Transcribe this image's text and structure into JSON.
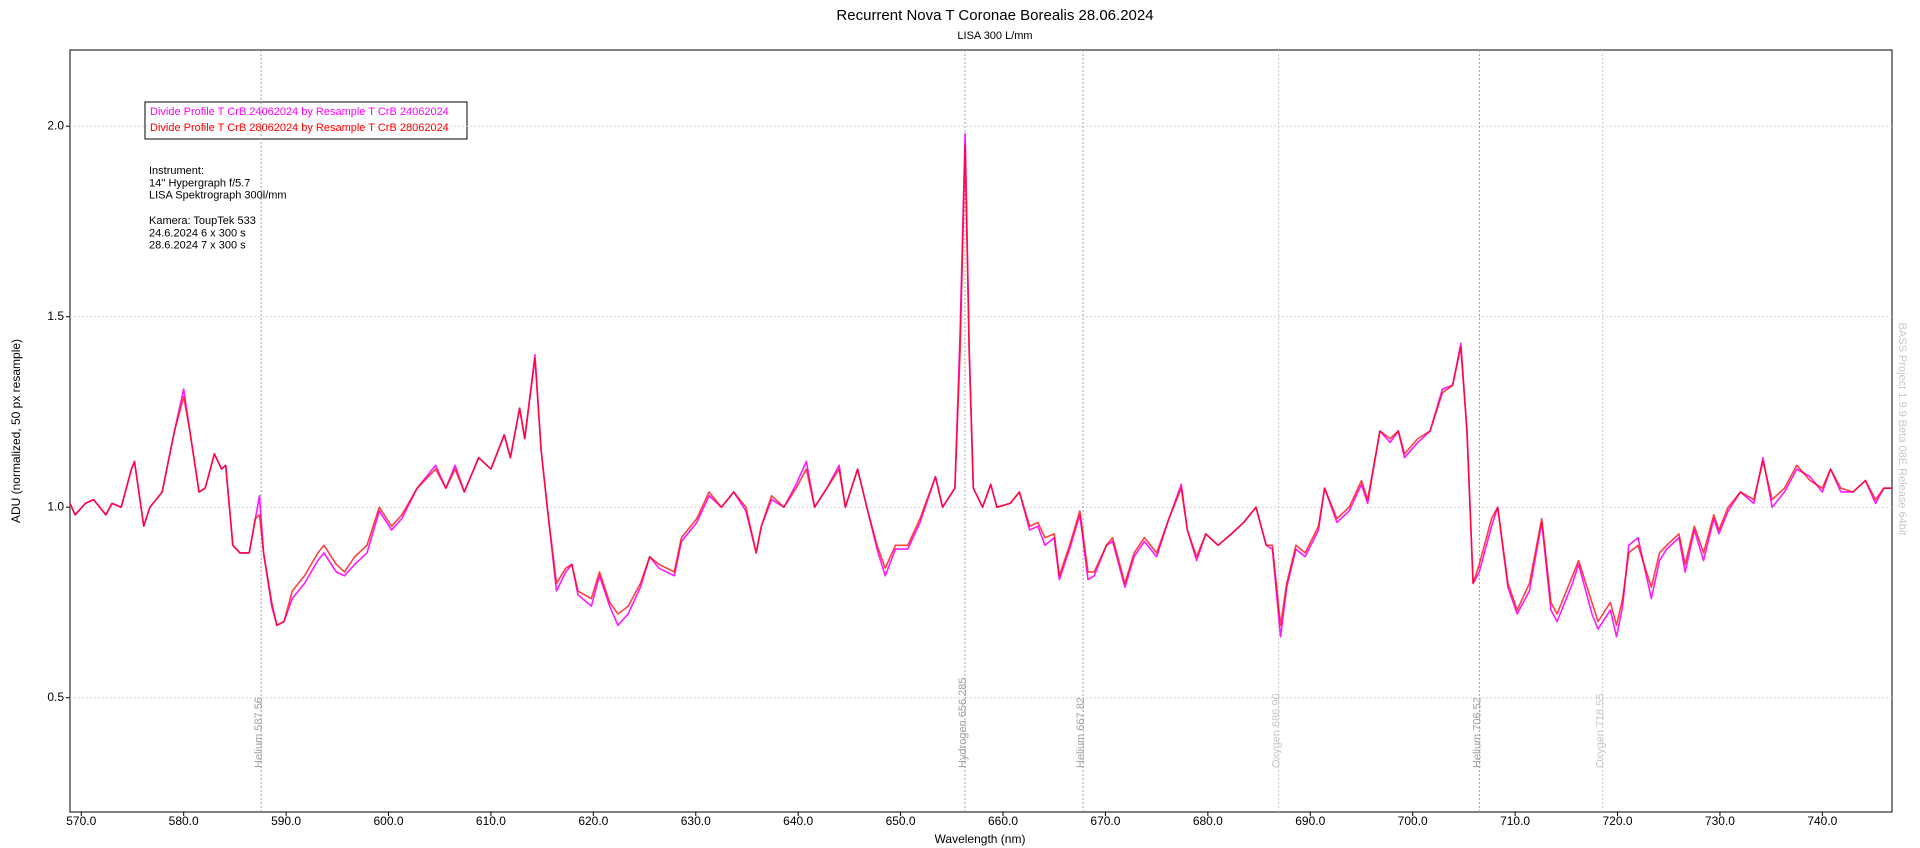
{
  "chart_data": {
    "type": "line",
    "title": "Recurrent Nova T Coronae Borealis  28.06.2024",
    "subtitle": "LISA 300 L/mm",
    "x_label": "Wavelength (nm)",
    "y_label": "ADU (normalized, 50 px resample)",
    "watermark": "BASS Project 1.9.9 Beta 08E Release 64bit",
    "xlim": [
      568.9,
      746.8
    ],
    "ylim": [
      0.2,
      2.2
    ],
    "xticks": [
      {
        "value": 570,
        "label": "570.0"
      },
      {
        "value": 580,
        "label": "580.0"
      },
      {
        "value": 590,
        "label": "590.0"
      },
      {
        "value": 600,
        "label": "600.0"
      },
      {
        "value": 610,
        "label": "610.0"
      },
      {
        "value": 620,
        "label": "620.0"
      },
      {
        "value": 630,
        "label": "630.0"
      },
      {
        "value": 640,
        "label": "640.0"
      },
      {
        "value": 650,
        "label": "650.0"
      },
      {
        "value": 660,
        "label": "660.0"
      },
      {
        "value": 670,
        "label": "670.0"
      },
      {
        "value": 680,
        "label": "680.0"
      },
      {
        "value": 690,
        "label": "690.0"
      },
      {
        "value": 700,
        "label": "700.0"
      },
      {
        "value": 710,
        "label": "710.0"
      },
      {
        "value": 720,
        "label": "720.0"
      },
      {
        "value": 730,
        "label": "730.0"
      },
      {
        "value": 740,
        "label": "740.0"
      }
    ],
    "yticks": [
      0.5,
      {
        "value": 1,
        "label": "1.0"
      },
      1.5,
      {
        "value": 2,
        "label": "2.0"
      }
    ],
    "grid": true,
    "markers": [
      {
        "label": "Helium 587.56",
        "x": 587.56,
        "color": "#a0a0a0"
      },
      {
        "label": "Hydrogen 656.285",
        "x": 656.285,
        "color": "#a0a0a0"
      },
      {
        "label": "Helium 667.82",
        "x": 667.82,
        "color": "#a0a0a0"
      },
      {
        "label": "Oxygen 686.90",
        "x": 686.9,
        "color": "#c8c8c8"
      },
      {
        "label": "Helium 706.52",
        "x": 706.52,
        "color": "#a0a0a0"
      },
      {
        "label": "Oxygen 718.55",
        "x": 718.55,
        "color": "#c8c8c8"
      }
    ],
    "notes": [
      "Instrument:",
      "14'' Hypergraph f/5.7",
      "LISA Spektrograph 300l/mm"
    ],
    "notes2": [
      "Kamera: ToupTek 533",
      "24.6.2024  6 x 300 s",
      "28.6.2024  7  x 300 s"
    ],
    "x": [
      568.9,
      569.4,
      570.4,
      571.2,
      572.4,
      573.0,
      573.9,
      574.9,
      575.2,
      576.1,
      576.7,
      577.9,
      579.1,
      580.0,
      580.6,
      581.5,
      582.1,
      583.0,
      583.7,
      584.1,
      584.8,
      585.5,
      586.4,
      587.0,
      587.4,
      587.8,
      588.6,
      589.1,
      589.8,
      590.6,
      591.8,
      593.1,
      593.7,
      594.9,
      595.7,
      596.7,
      597.9,
      599.1,
      600.3,
      601.3,
      602.8,
      604.6,
      605.6,
      606.5,
      607.4,
      608.8,
      610.0,
      611.3,
      611.9,
      612.8,
      613.3,
      614.3,
      614.9,
      615.5,
      616.4,
      617.3,
      617.9,
      618.5,
      619.8,
      620.6,
      621.6,
      622.4,
      623.4,
      624.6,
      625.5,
      626.4,
      627.9,
      628.6,
      630.1,
      631.3,
      632.5,
      633.7,
      634.9,
      635.9,
      636.4,
      637.4,
      638.6,
      639.8,
      640.8,
      641.6,
      642.8,
      644.0,
      644.6,
      645.8,
      646.7,
      647.7,
      648.5,
      649.5,
      650.7,
      651.9,
      653.4,
      654.1,
      655.3,
      655.8,
      656.3,
      656.7,
      657.1,
      658.0,
      658.8,
      659.4,
      660.7,
      661.6,
      662.6,
      663.4,
      664.1,
      665.0,
      665.5,
      666.5,
      667.5,
      668.3,
      668.9,
      670.1,
      670.7,
      671.9,
      672.8,
      673.8,
      675.0,
      676.2,
      677.4,
      678.0,
      678.9,
      679.8,
      681.0,
      682.3,
      683.5,
      684.7,
      685.7,
      686.3,
      687.1,
      687.7,
      688.6,
      689.5,
      690.8,
      691.4,
      692.6,
      693.8,
      695.0,
      695.6,
      696.8,
      697.8,
      698.6,
      699.2,
      700.5,
      701.7,
      702.9,
      703.9,
      704.7,
      705.3,
      705.9,
      706.5,
      707.7,
      708.3,
      709.3,
      710.2,
      711.4,
      712.6,
      713.5,
      714.1,
      715.6,
      716.2,
      717.5,
      718.1,
      719.3,
      719.9,
      720.5,
      721.1,
      722.0,
      723.3,
      724.1,
      724.8,
      726.0,
      726.6,
      727.5,
      728.4,
      729.4,
      729.9,
      730.8,
      732.0,
      733.3,
      734.2,
      735.1,
      736.3,
      737.5,
      738.8,
      740.0,
      740.8,
      741.8,
      743.0,
      744.2,
      745.2,
      746.0,
      746.8
    ],
    "series": [
      {
        "name": "Divide Profile T CrB 24062024  by Resample T CrB 24062024",
        "color": "#ff00ff",
        "values": [
          1.01,
          0.98,
          1.01,
          1.02,
          0.98,
          1.01,
          1.0,
          1.1,
          1.12,
          0.95,
          1.0,
          1.04,
          1.2,
          1.31,
          1.2,
          1.04,
          1.05,
          1.14,
          1.1,
          1.11,
          0.9,
          0.88,
          0.88,
          0.97,
          1.03,
          0.88,
          0.74,
          0.69,
          0.7,
          0.76,
          0.8,
          0.86,
          0.88,
          0.83,
          0.82,
          0.85,
          0.88,
          0.99,
          0.94,
          0.97,
          1.05,
          1.11,
          1.05,
          1.11,
          1.04,
          1.13,
          1.1,
          1.19,
          1.13,
          1.26,
          1.18,
          1.4,
          1.15,
          1.0,
          0.78,
          0.83,
          0.85,
          0.77,
          0.74,
          0.82,
          0.74,
          0.69,
          0.72,
          0.79,
          0.87,
          0.84,
          0.82,
          0.91,
          0.96,
          1.03,
          1.0,
          1.04,
          0.99,
          0.88,
          0.95,
          1.02,
          1.0,
          1.06,
          1.12,
          1.0,
          1.05,
          1.11,
          1.0,
          1.1,
          1.0,
          0.89,
          0.82,
          0.89,
          0.89,
          0.96,
          1.08,
          1.0,
          1.05,
          1.45,
          1.98,
          1.42,
          1.05,
          1.0,
          1.06,
          1.0,
          1.01,
          1.04,
          0.94,
          0.95,
          0.9,
          0.92,
          0.81,
          0.89,
          0.98,
          0.81,
          0.82,
          0.9,
          0.91,
          0.79,
          0.87,
          0.91,
          0.87,
          0.97,
          1.06,
          0.94,
          0.86,
          0.93,
          0.9,
          0.93,
          0.96,
          1.0,
          0.9,
          0.89,
          0.66,
          0.79,
          0.89,
          0.87,
          0.94,
          1.05,
          0.96,
          0.99,
          1.06,
          1.01,
          1.2,
          1.17,
          1.2,
          1.13,
          1.17,
          1.2,
          1.31,
          1.32,
          1.43,
          1.2,
          0.8,
          0.83,
          0.95,
          1.0,
          0.79,
          0.72,
          0.78,
          0.96,
          0.73,
          0.7,
          0.8,
          0.85,
          0.72,
          0.68,
          0.73,
          0.66,
          0.74,
          0.9,
          0.92,
          0.76,
          0.86,
          0.89,
          0.92,
          0.83,
          0.94,
          0.86,
          0.97,
          0.93,
          0.99,
          1.04,
          1.01,
          1.13,
          1.0,
          1.04,
          1.1,
          1.08,
          1.04,
          1.1,
          1.04,
          1.04,
          1.07,
          1.01,
          1.05,
          1.05
        ]
      },
      {
        "name": "Divide Profile T CrB 28062024  by Resample T CrB 28062024",
        "color": "#ff0000",
        "values": [
          1.01,
          0.98,
          1.01,
          1.02,
          0.98,
          1.01,
          1.0,
          1.1,
          1.12,
          0.95,
          1.0,
          1.04,
          1.2,
          1.29,
          1.2,
          1.04,
          1.05,
          1.14,
          1.1,
          1.11,
          0.9,
          0.88,
          0.88,
          0.97,
          0.98,
          0.88,
          0.75,
          0.69,
          0.7,
          0.78,
          0.82,
          0.88,
          0.9,
          0.85,
          0.83,
          0.87,
          0.9,
          1.0,
          0.95,
          0.98,
          1.05,
          1.1,
          1.05,
          1.1,
          1.04,
          1.13,
          1.1,
          1.19,
          1.13,
          1.26,
          1.18,
          1.39,
          1.15,
          1.0,
          0.8,
          0.84,
          0.85,
          0.78,
          0.76,
          0.83,
          0.75,
          0.72,
          0.74,
          0.8,
          0.87,
          0.85,
          0.83,
          0.92,
          0.97,
          1.04,
          1.0,
          1.04,
          1.0,
          0.88,
          0.95,
          1.03,
          1.0,
          1.05,
          1.1,
          1.0,
          1.05,
          1.1,
          1.0,
          1.1,
          1.0,
          0.9,
          0.84,
          0.9,
          0.9,
          0.97,
          1.08,
          1.0,
          1.05,
          1.4,
          1.95,
          1.4,
          1.05,
          1.0,
          1.06,
          1.0,
          1.01,
          1.04,
          0.95,
          0.96,
          0.92,
          0.93,
          0.82,
          0.9,
          0.99,
          0.83,
          0.83,
          0.9,
          0.92,
          0.8,
          0.88,
          0.92,
          0.88,
          0.97,
          1.05,
          0.94,
          0.87,
          0.93,
          0.9,
          0.93,
          0.96,
          1.0,
          0.9,
          0.9,
          0.69,
          0.8,
          0.9,
          0.88,
          0.95,
          1.05,
          0.97,
          1.0,
          1.07,
          1.02,
          1.2,
          1.18,
          1.2,
          1.14,
          1.18,
          1.2,
          1.3,
          1.32,
          1.42,
          1.2,
          0.8,
          0.85,
          0.97,
          1.0,
          0.8,
          0.73,
          0.8,
          0.97,
          0.75,
          0.72,
          0.82,
          0.86,
          0.75,
          0.7,
          0.75,
          0.69,
          0.76,
          0.88,
          0.9,
          0.79,
          0.88,
          0.9,
          0.93,
          0.85,
          0.95,
          0.88,
          0.98,
          0.94,
          1.0,
          1.04,
          1.02,
          1.12,
          1.02,
          1.05,
          1.11,
          1.07,
          1.05,
          1.1,
          1.05,
          1.04,
          1.07,
          1.02,
          1.05,
          1.05
        ]
      }
    ]
  }
}
